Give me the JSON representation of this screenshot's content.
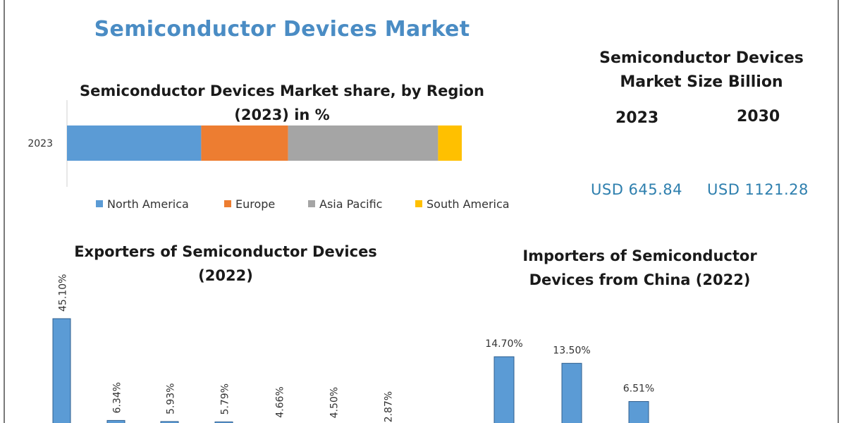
{
  "title": "Semiconductor Devices Market",
  "market_size": {
    "title": "Semiconductor Devices Market Size Billion",
    "years": [
      "2023",
      "2030"
    ],
    "values": [
      "USD 645.84",
      "USD 1121.28"
    ]
  },
  "chart_data": [
    {
      "type": "bar",
      "orientation": "horizontal-stacked",
      "title": "Semiconductor Devices Market share, by Region (2023) in %",
      "categories": [
        "2023"
      ],
      "series": [
        {
          "name": "North America",
          "values": [
            34
          ],
          "color": "#5b9bd5"
        },
        {
          "name": "Europe",
          "values": [
            22
          ],
          "color": "#ed7d31"
        },
        {
          "name": "Asia Pacific",
          "values": [
            38
          ],
          "color": "#a5a5a5"
        },
        {
          "name": "South America",
          "values": [
            6
          ],
          "color": "#ffc000"
        }
      ],
      "legend": "bottom"
    },
    {
      "type": "bar",
      "title": "Exporters of Semiconductor Devices (2022)",
      "values": [
        45.1,
        6.34,
        5.93,
        5.79,
        4.66,
        4.5,
        2.87
      ],
      "labels": [
        "45.10%",
        "6.34%",
        "5.93%",
        "5.79%",
        "4.66%",
        "4.50%",
        "2.87%"
      ],
      "color": "#5b9bd5"
    },
    {
      "type": "bar",
      "title": "Importers of Semiconductor Devices from China (2022)",
      "values": [
        14.7,
        13.5,
        6.51
      ],
      "labels": [
        "14.70%",
        "13.50%",
        "6.51%"
      ],
      "color": "#5b9bd5"
    }
  ]
}
